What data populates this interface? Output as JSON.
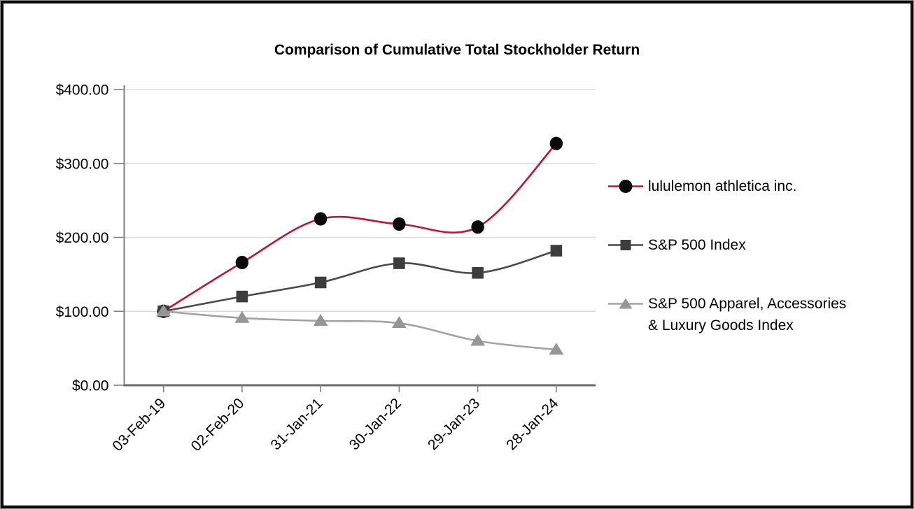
{
  "title": "Comparison of Cumulative Total Stockholder Return",
  "chart_data": {
    "type": "line",
    "title": "Comparison of Cumulative Total Stockholder Return",
    "x_categories": [
      "03-Feb-19",
      "02-Feb-20",
      "31-Jan-21",
      "30-Jan-22",
      "29-Jan-23",
      "28-Jan-24"
    ],
    "series": [
      {
        "name": "lululemon athletica inc.",
        "values": [
          100,
          166,
          225,
          218,
          214,
          327
        ],
        "line_color": "#C01338",
        "marker": "circle",
        "marker_color": "#0a0a0a"
      },
      {
        "name": "S&P 500 Index",
        "values": [
          100,
          120,
          139,
          165,
          152,
          182
        ],
        "line_color": "#4a4a4a",
        "marker": "square",
        "marker_color": "#3d3d3d"
      },
      {
        "name": "S&P 500 Apparel, Accessories & Luxury Goods Index",
        "values": [
          100,
          91,
          87,
          84,
          60,
          48
        ],
        "line_color": "#a3a3a3",
        "marker": "triangle",
        "marker_color": "#969696"
      }
    ],
    "ylim": [
      0,
      400
    ],
    "y_tick_step": 100,
    "y_tick_labels": [
      "$0.00",
      "$100.00",
      "$200.00",
      "$300.00",
      "$400.00"
    ],
    "grid": true,
    "smooth_lines": true,
    "legend_position": "right",
    "style": {
      "gridline_color": "#dddddd",
      "y_axis_color": "#808080",
      "x_axis_color": "#6b6b6b",
      "tick_color": "#808080",
      "text_color": "#000000",
      "background": "#ffffff",
      "frame_border_color": "#0b0b0b"
    }
  },
  "legend": {
    "items": [
      {
        "marker": "circle",
        "lines": [
          "lululemon athletica inc."
        ]
      },
      {
        "marker": "square",
        "lines": [
          "S&P 500 Index"
        ]
      },
      {
        "marker": "triangle",
        "lines": [
          "S&P 500 Apparel, Accessories",
          "& Luxury Goods Index"
        ]
      }
    ]
  }
}
